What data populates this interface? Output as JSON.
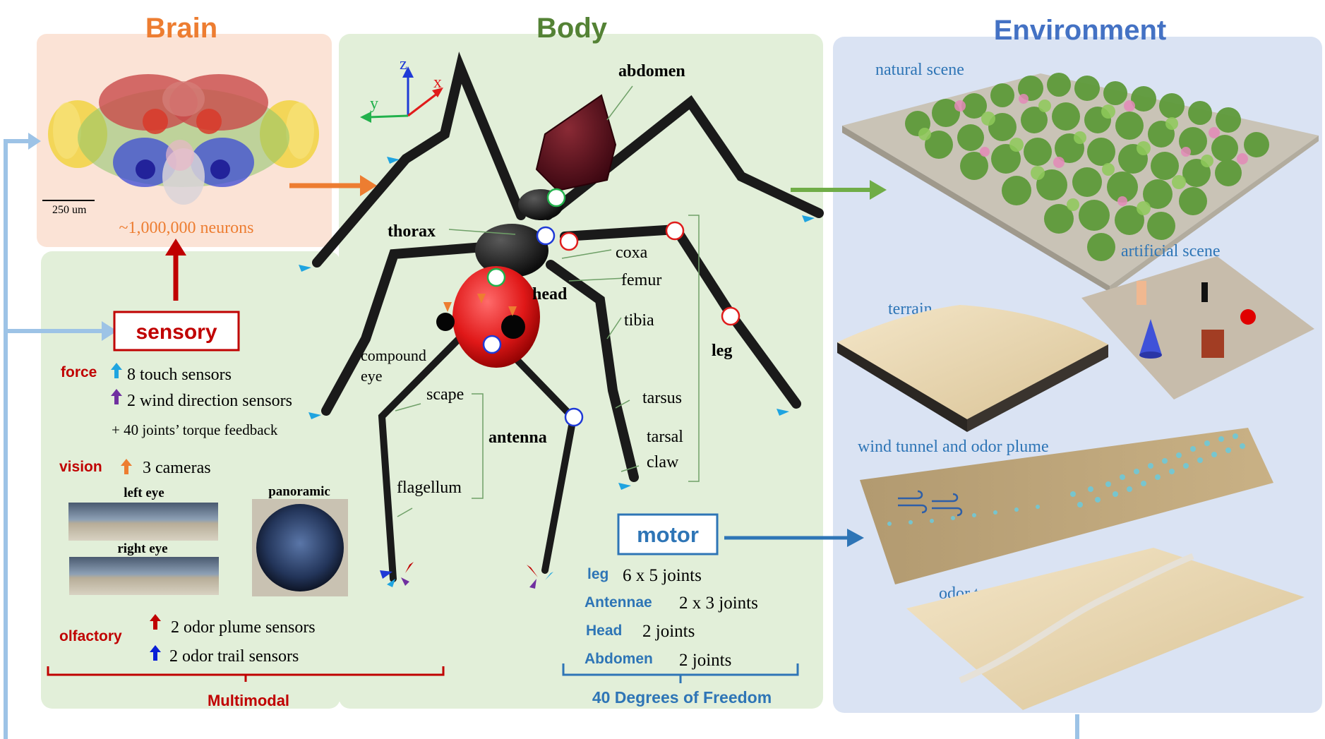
{
  "titles": {
    "brain": "Brain",
    "body": "Body",
    "environment": "Environment"
  },
  "brain": {
    "scale_bar": "250 um",
    "neurons": "~1,000,000 neurons"
  },
  "axes": {
    "x": "x",
    "y": "y",
    "z": "z"
  },
  "body_labels": {
    "abdomen": "abdomen",
    "thorax": "thorax",
    "head": "head",
    "coxa": "coxa",
    "femur": "femur",
    "tibia": "tibia",
    "tarsus": "tarsus",
    "tarsal_claw_1": "tarsal",
    "tarsal_claw_2": "claw",
    "leg": "leg",
    "compound_eye_1": "compound",
    "compound_eye_2": "eye",
    "scape": "scape",
    "flagellum": "flagellum",
    "antenna": "antenna"
  },
  "sensory": {
    "title": "sensory",
    "force_label": "force",
    "force_items": [
      "8 touch sensors",
      "2 wind direction sensors",
      "+ 40 joints’ torque feedback"
    ],
    "vision_label": "vision",
    "vision_item": "3 cameras",
    "left_eye": "left eye",
    "right_eye": "right eye",
    "panoramic": "panoramic",
    "olfactory_label": "olfactory",
    "olfactory_items": [
      "2 odor plume sensors",
      "2 odor trail sensors"
    ],
    "footer": "Multimodal"
  },
  "motor": {
    "title": "motor",
    "rows": [
      {
        "part": "leg",
        "joints": "6 x 5 joints"
      },
      {
        "part": "Antennae",
        "joints": "2 x 3 joints"
      },
      {
        "part": "Head",
        "joints": "2 joints"
      },
      {
        "part": "Abdomen",
        "joints": "2 joints"
      }
    ],
    "footer": "40 Degrees of Freedom"
  },
  "environment": {
    "natural": "natural scene",
    "artificial": "artificial scene",
    "terrain": "terrain",
    "wind": "wind tunnel and odor plume",
    "trail": "odor trail"
  },
  "colors": {
    "brain_panel": "#fbe3d6",
    "body_panel": "#e2efd9",
    "env_panel": "#dae3f3",
    "brain_title": "#ed7d31",
    "body_title": "#548235",
    "env_title": "#4472c4",
    "sensory_red": "#c00000",
    "motor_blue": "#2e75b6",
    "loop_line": "#9dc3e6"
  }
}
